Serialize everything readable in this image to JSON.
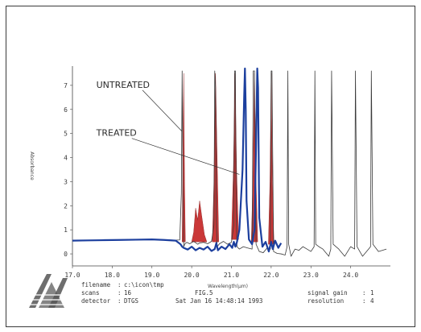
{
  "chart_data": {
    "type": "line",
    "figure_label": "FIG.5",
    "xlabel": "Wavelength(µm)",
    "ylabel": "Absorbance",
    "xlim": [
      17.0,
      25.0
    ],
    "ylim": [
      -0.5,
      7.8
    ],
    "x_ticks": [
      {
        "value": 17.0,
        "label": "17.0"
      },
      {
        "value": 18.0,
        "label": "18.0"
      },
      {
        "value": 19.0,
        "label": "19.0"
      },
      {
        "value": 20.0,
        "label": "20.0"
      },
      {
        "value": 21.0,
        "label": "21.0"
      },
      {
        "value": 22.0,
        "label": "22.0"
      },
      {
        "value": 23.0,
        "label": "23.0"
      },
      {
        "value": 24.0,
        "label": "24.0"
      }
    ],
    "y_ticks": [
      {
        "value": 0,
        "label": "0"
      },
      {
        "value": 1,
        "label": "1"
      },
      {
        "value": 2,
        "label": "2"
      },
      {
        "value": 3,
        "label": "3"
      },
      {
        "value": 4,
        "label": "4"
      },
      {
        "value": 5,
        "label": "5"
      },
      {
        "value": 6,
        "label": "6"
      },
      {
        "value": 7,
        "label": "7"
      }
    ],
    "grid": false,
    "annotations": [
      {
        "text": "UNTREATED",
        "at": [
          19.75,
          5.1
        ],
        "label_at": [
          17.6,
          6.9
        ]
      },
      {
        "text": "TREATED",
        "at": [
          21.2,
          3.3
        ],
        "label_at": [
          17.6,
          4.9
        ]
      }
    ],
    "series": [
      {
        "color": "#3a3a3a",
        "x": [
          17.0,
          17.4,
          17.8,
          18.2,
          18.6,
          19.0,
          19.3,
          19.6,
          19.7,
          19.74,
          19.76,
          19.78,
          19.8,
          19.83,
          19.88,
          19.95,
          20.05,
          20.15,
          20.2,
          20.3,
          20.4,
          20.5,
          20.56,
          20.58,
          20.6,
          20.62,
          20.64,
          20.7,
          20.8,
          20.9,
          21.0,
          21.06,
          21.08,
          21.1,
          21.12,
          21.14,
          21.2,
          21.3,
          21.4,
          21.52,
          21.55,
          21.58,
          21.62,
          21.7,
          21.8,
          21.9,
          21.98,
          22.0,
          22.02,
          22.06,
          22.15,
          22.25,
          22.35,
          22.4,
          22.42,
          22.44,
          22.5,
          22.6,
          22.7,
          22.8,
          22.9,
          23.0,
          23.08,
          23.1,
          23.12,
          23.2,
          23.3,
          23.45,
          23.5,
          23.52,
          23.56,
          23.7,
          23.85,
          24.0,
          24.1,
          24.12,
          24.16,
          24.3,
          24.45,
          24.5,
          24.52,
          24.56,
          24.7,
          24.9
        ],
        "y": [
          0.55,
          0.56,
          0.57,
          0.58,
          0.6,
          0.6,
          0.59,
          0.57,
          0.58,
          2.5,
          7.6,
          2.8,
          0.3,
          0.42,
          0.48,
          0.42,
          0.52,
          0.4,
          0.45,
          0.48,
          0.42,
          0.52,
          1.2,
          7.6,
          6.9,
          1.5,
          0.3,
          0.42,
          0.52,
          0.4,
          0.48,
          1.2,
          7.6,
          7.6,
          1.6,
          0.3,
          0.2,
          0.3,
          0.25,
          0.2,
          7.6,
          7.6,
          0.4,
          0.1,
          0.05,
          0.25,
          0.2,
          7.6,
          7.6,
          0.1,
          0.02,
          0.0,
          -0.05,
          0.3,
          7.6,
          0.4,
          -0.1,
          0.2,
          0.15,
          0.3,
          0.2,
          0.1,
          0.3,
          7.6,
          0.4,
          0.3,
          0.2,
          -0.1,
          0.2,
          7.6,
          0.4,
          0.2,
          -0.1,
          0.3,
          0.2,
          7.6,
          0.3,
          -0.1,
          0.2,
          0.3,
          7.6,
          0.4,
          0.1,
          0.2
        ]
      },
      {
        "color": "#1c3f9e",
        "x": [
          17.0,
          17.4,
          17.8,
          18.2,
          18.6,
          19.0,
          19.3,
          19.6,
          19.72,
          19.76,
          19.8,
          19.9,
          20.0,
          20.1,
          20.2,
          20.3,
          20.4,
          20.5,
          20.58,
          20.62,
          20.66,
          20.75,
          20.85,
          20.95,
          21.02,
          21.06,
          21.1,
          21.14,
          21.2,
          21.28,
          21.32,
          21.34,
          21.36,
          21.38,
          21.44,
          21.52,
          21.58,
          21.62,
          21.65,
          21.67,
          21.7,
          21.78,
          21.86,
          21.94,
          22.0,
          22.04,
          22.1,
          22.18,
          22.25
        ],
        "y": [
          0.55,
          0.56,
          0.57,
          0.58,
          0.59,
          0.6,
          0.58,
          0.55,
          0.4,
          0.3,
          0.25,
          0.18,
          0.3,
          0.15,
          0.25,
          0.18,
          0.3,
          0.12,
          0.2,
          0.45,
          0.15,
          0.3,
          0.2,
          0.4,
          0.25,
          0.5,
          0.3,
          0.5,
          1.0,
          3.5,
          6.5,
          7.7,
          6.0,
          2.2,
          0.6,
          0.4,
          1.0,
          4.5,
          7.7,
          6.9,
          1.5,
          0.3,
          0.5,
          0.1,
          0.5,
          0.2,
          0.55,
          0.25,
          0.45
        ]
      }
    ],
    "filled_peaks": [
      {
        "color": "#c62828",
        "x": [
          19.76,
          19.78,
          19.8,
          19.82,
          19.84
        ],
        "y": [
          0.5,
          4.0,
          7.5,
          3.0,
          0.5
        ]
      },
      {
        "color": "#c62828",
        "x": [
          20.0,
          20.05,
          20.1,
          20.15,
          20.2,
          20.25,
          20.32,
          20.38
        ],
        "y": [
          0.5,
          0.9,
          1.9,
          1.4,
          2.2,
          1.6,
          0.8,
          0.5
        ]
      },
      {
        "color": "#c62828",
        "x": [
          20.52,
          20.56,
          20.6,
          20.64,
          20.68
        ],
        "y": [
          0.5,
          3.0,
          7.5,
          4.0,
          0.5
        ]
      },
      {
        "color": "#c62828",
        "x": [
          21.0,
          21.05,
          21.09,
          21.13,
          21.18
        ],
        "y": [
          0.6,
          3.5,
          7.5,
          3.5,
          0.6
        ]
      },
      {
        "color": "#c62828",
        "x": [
          21.5,
          21.54,
          21.58,
          21.62,
          21.66
        ],
        "y": [
          0.5,
          3.0,
          7.5,
          3.0,
          0.5
        ]
      },
      {
        "color": "#c62828",
        "x": [
          21.93,
          21.97,
          22.0,
          22.03,
          22.07
        ],
        "y": [
          0.4,
          3.0,
          7.5,
          3.0,
          0.4
        ]
      }
    ]
  },
  "info": {
    "filename_label": "filename",
    "filename_value": "c:\\icon\\tmp",
    "scans_label": "scans",
    "scans_value": "16",
    "detector_label": "detector",
    "detector_value": "DTGS",
    "timestamp": "Sat Jan 16 14:48:14 1993",
    "signal_gain_label": "signal gain",
    "signal_gain_value": "1",
    "resolution_label": "resolution",
    "resolution_value": "4"
  }
}
